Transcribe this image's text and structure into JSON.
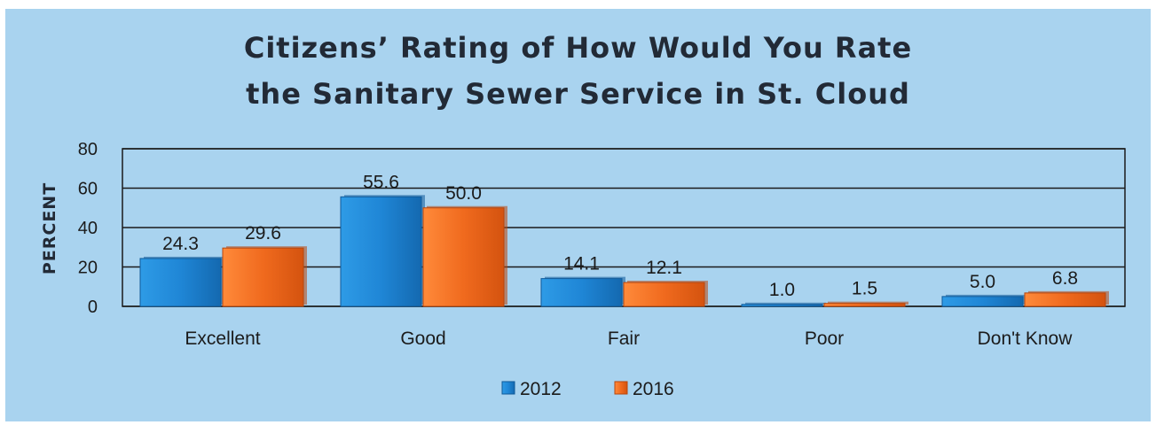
{
  "chart_data": {
    "type": "bar",
    "title_lines": [
      "Citizens’ Rating of How Would You Rate",
      "the Sanitary Sewer Service in St. Cloud"
    ],
    "ylabel": "PERCENT",
    "xlabel": "",
    "ylim": [
      0,
      80
    ],
    "yticks": [
      0,
      20,
      40,
      60,
      80
    ],
    "categories": [
      "Excellent",
      "Good",
      "Fair",
      "Poor",
      "Don't Know"
    ],
    "series": [
      {
        "name": "2012",
        "values": [
          24.3,
          55.6,
          14.1,
          1.0,
          5.0
        ],
        "labels": [
          "24.3",
          "55.6",
          "14.1",
          "1.0",
          "5.0"
        ],
        "color": "#1f86d6"
      },
      {
        "name": "2016",
        "values": [
          29.6,
          50.0,
          12.1,
          1.5,
          6.8
        ],
        "labels": [
          "29.6",
          "50.0",
          "12.1",
          "1.5",
          "6.8"
        ],
        "color": "#f06a1e"
      }
    ],
    "grid": true,
    "legend_position": "bottom"
  }
}
